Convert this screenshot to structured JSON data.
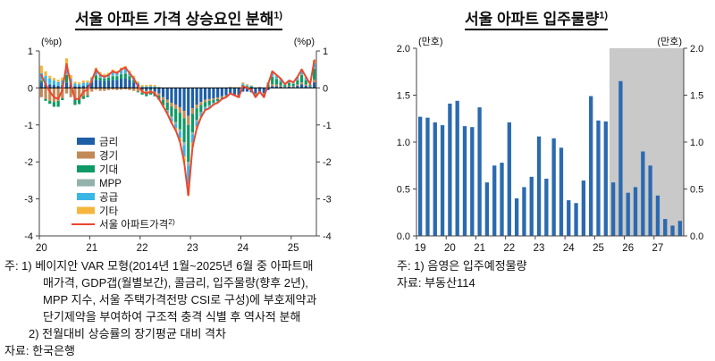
{
  "left_chart": {
    "title": "서울 아파트 가격 상승요인 분해",
    "title_sup": "1)"
  },
  "right_chart": {
    "title": "서울 아파트 입주물량",
    "title_sup": "1)"
  },
  "notes_left": {
    "lines": [
      "주: 1) 베이지안 VAR 모형(2014년 1월~2025년 6월 중 아파트매",
      "매가격, GDP갭(월별보간), 콜금리, 입주물량(향후 2년),",
      "MPP 지수, 서울 주택가격전망 CSI로 구성)에 부호제약과",
      "단기제약을 부여하여 구조적 충격 식별 후 역사적 분해",
      "2) 전월대비 상승률의 장기평균 대비 격차",
      "자료: 한국은행"
    ]
  },
  "notes_right": {
    "lines": [
      "주: 1) 음영은 입주예정물량",
      "자료: 부동산114"
    ]
  },
  "chart_data": [
    {
      "type": "bar",
      "stacked": true,
      "title": "서울 아파트 가격 상승요인 분해1)",
      "unit_left": "(%p)",
      "unit_right": "(%p)",
      "frequency": "monthly",
      "x_start": "2020-01",
      "x_end": "2025-06",
      "ylim": [
        -4,
        1
      ],
      "y_ticks": {
        "values": [
          1,
          0,
          -1,
          -2,
          -3,
          -4
        ],
        "labels": [
          "1",
          "0",
          "-1",
          "-2",
          "-3",
          "-4"
        ]
      },
      "x_ticks": [
        {
          "index": 0,
          "label": "20"
        },
        {
          "index": 12,
          "label": "21"
        },
        {
          "index": 24,
          "label": "22"
        },
        {
          "index": 36,
          "label": "23"
        },
        {
          "index": 48,
          "label": "24"
        },
        {
          "index": 60,
          "label": "25"
        }
      ],
      "legend_position": "inside-left",
      "series": [
        {
          "name": "금리",
          "color": "#1e5fa8",
          "values": [
            0.15,
            0.12,
            0.1,
            0.08,
            0.06,
            0.08,
            0.15,
            0.1,
            0.05,
            0.04,
            0.06,
            0.08,
            0.15,
            0.22,
            0.2,
            0.18,
            0.2,
            0.22,
            0.22,
            0.25,
            0.26,
            0.22,
            0.15,
            0.1,
            -0.05,
            -0.08,
            -0.06,
            -0.1,
            -0.15,
            -0.25,
            -0.32,
            -0.4,
            -0.45,
            -0.52,
            -0.62,
            -0.75,
            -0.55,
            -0.45,
            -0.38,
            -0.32,
            -0.3,
            -0.28,
            -0.26,
            -0.22,
            -0.2,
            -0.16,
            -0.18,
            -0.2,
            -0.1,
            -0.1,
            -0.12,
            -0.15,
            -0.12,
            -0.14,
            -0.06,
            0.05,
            0.05,
            0.04,
            0.02,
            0.04,
            0.03,
            0.06,
            0.1,
            0.06,
            0.03,
            0.15
          ]
        },
        {
          "name": "경기",
          "color": "#c28a57",
          "values": [
            -0.25,
            -0.3,
            -0.35,
            -0.38,
            -0.35,
            -0.28,
            -0.15,
            -0.25,
            -0.3,
            -0.28,
            -0.22,
            -0.2,
            -0.1,
            -0.05,
            -0.08,
            -0.08,
            -0.06,
            -0.05,
            -0.06,
            -0.05,
            -0.04,
            -0.06,
            -0.08,
            -0.1,
            -0.08,
            -0.08,
            -0.07,
            -0.06,
            -0.06,
            -0.07,
            -0.08,
            -0.1,
            -0.12,
            -0.15,
            -0.2,
            -0.25,
            -0.15,
            -0.1,
            -0.08,
            -0.06,
            -0.05,
            -0.04,
            -0.04,
            -0.03,
            -0.03,
            -0.02,
            -0.03,
            -0.04,
            0.02,
            0.01,
            0.01,
            -0.03,
            -0.01,
            -0.03,
            0.02,
            0.05,
            0.04,
            0.03,
            0.01,
            0.02,
            0.02,
            0.03,
            0.05,
            0.03,
            0.01,
            0.07
          ]
        },
        {
          "name": "기대",
          "color": "#0f9a65",
          "values": [
            0.05,
            -0.05,
            -0.08,
            -0.12,
            -0.15,
            -0.05,
            0.2,
            0.02,
            -0.15,
            -0.15,
            -0.08,
            -0.05,
            0.05,
            0.12,
            0.08,
            0.08,
            0.08,
            0.1,
            0.1,
            0.12,
            0.13,
            0.1,
            0.06,
            -0.02,
            -0.05,
            -0.06,
            -0.05,
            -0.06,
            -0.1,
            -0.15,
            -0.2,
            -0.28,
            -0.35,
            -0.45,
            -0.65,
            -1.0,
            -0.5,
            -0.32,
            -0.2,
            -0.13,
            -0.12,
            -0.08,
            -0.06,
            -0.03,
            -0.02,
            0.01,
            -0.01,
            -0.02,
            0.06,
            0.04,
            0.03,
            -0.05,
            0.0,
            -0.05,
            0.08,
            0.2,
            0.15,
            0.1,
            0.04,
            0.08,
            0.06,
            0.12,
            0.2,
            0.12,
            0.04,
            0.3
          ]
        },
        {
          "name": "MPP",
          "color": "#93b2ab",
          "values": [
            0.02,
            0.01,
            0.01,
            -0.02,
            -0.02,
            0.01,
            0.03,
            0.01,
            -0.02,
            -0.02,
            0.0,
            0.0,
            0.01,
            0.02,
            0.02,
            0.02,
            0.02,
            0.02,
            0.02,
            0.02,
            0.02,
            0.02,
            0.01,
            0.0,
            0.0,
            -0.01,
            -0.01,
            -0.01,
            -0.02,
            -0.02,
            -0.03,
            -0.04,
            -0.05,
            -0.06,
            -0.08,
            -0.1,
            -0.06,
            -0.04,
            -0.03,
            -0.02,
            -0.02,
            -0.01,
            -0.01,
            -0.01,
            -0.01,
            0.0,
            0.0,
            -0.01,
            0.01,
            0.01,
            0.0,
            -0.01,
            0.0,
            -0.01,
            0.01,
            0.02,
            0.02,
            0.01,
            0.0,
            0.01,
            0.01,
            0.01,
            0.02,
            0.01,
            0.0,
            0.03
          ]
        },
        {
          "name": "공급",
          "color": "#38b6e6",
          "values": [
            0.18,
            0.2,
            0.15,
            0.12,
            0.1,
            0.12,
            0.22,
            0.12,
            0.07,
            0.06,
            0.08,
            0.07,
            0.05,
            0.1,
            0.08,
            0.06,
            0.07,
            0.09,
            0.07,
            0.09,
            0.1,
            0.07,
            0.06,
            0.04,
            0.04,
            0.04,
            0.05,
            0.04,
            0.02,
            -0.01,
            -0.05,
            -0.09,
            -0.12,
            -0.18,
            -0.3,
            -0.5,
            -0.22,
            -0.13,
            -0.08,
            -0.05,
            -0.04,
            -0.03,
            -0.02,
            -0.01,
            0.01,
            0.01,
            0.01,
            0.01,
            0.03,
            0.02,
            0.02,
            -0.01,
            0.02,
            -0.02,
            0.03,
            0.08,
            0.06,
            0.05,
            0.02,
            0.03,
            0.02,
            0.05,
            0.08,
            0.05,
            0.01,
            0.12
          ]
        },
        {
          "name": "기타",
          "color": "#f6b53d",
          "values": [
            0.2,
            0.12,
            0.07,
            0.07,
            0.06,
            0.07,
            0.2,
            0.1,
            0.05,
            0.05,
            0.06,
            0.05,
            0.04,
            0.09,
            0.05,
            0.04,
            0.04,
            0.07,
            0.05,
            0.07,
            0.08,
            0.05,
            0.05,
            0.03,
            0.04,
            0.04,
            0.04,
            0.04,
            0.01,
            0.0,
            -0.02,
            -0.04,
            -0.06,
            -0.09,
            -0.15,
            -0.3,
            -0.12,
            -0.06,
            -0.03,
            -0.02,
            -0.02,
            -0.01,
            -0.01,
            0.0,
            0.0,
            0.01,
            0.01,
            0.01,
            0.03,
            0.02,
            0.01,
            0.0,
            0.01,
            0.0,
            0.02,
            0.05,
            0.03,
            0.02,
            0.01,
            0.02,
            0.01,
            0.03,
            0.05,
            0.03,
            0.01,
            0.08
          ]
        }
      ],
      "line": {
        "name": "서울 아파트가격",
        "sup": "2)",
        "color": "#ee4630",
        "values": [
          0.35,
          0.1,
          -0.1,
          -0.25,
          -0.3,
          -0.05,
          0.65,
          0.1,
          -0.3,
          -0.3,
          -0.1,
          -0.05,
          0.2,
          0.5,
          0.35,
          0.3,
          0.35,
          0.45,
          0.4,
          0.5,
          0.55,
          0.4,
          0.25,
          0.05,
          -0.1,
          -0.15,
          -0.1,
          -0.15,
          -0.3,
          -0.5,
          -0.7,
          -0.95,
          -1.15,
          -1.45,
          -2.0,
          -2.9,
          -1.6,
          -1.1,
          -0.8,
          -0.6,
          -0.55,
          -0.45,
          -0.4,
          -0.3,
          -0.25,
          -0.15,
          -0.2,
          -0.25,
          0.05,
          0.0,
          -0.05,
          -0.25,
          -0.1,
          -0.25,
          0.1,
          0.45,
          0.35,
          0.25,
          0.1,
          0.2,
          0.15,
          0.3,
          0.5,
          0.3,
          0.1,
          0.75
        ]
      }
    },
    {
      "type": "bar",
      "title": "서울 아파트 입주물량1)",
      "unit_left": "(만호)",
      "unit_right": "(만호)",
      "frequency": "quarterly",
      "x_start": "2019Q1",
      "x_end": "2027Q4",
      "ylim": [
        0,
        2
      ],
      "y_ticks": {
        "values": [
          0,
          0.5,
          1,
          1.5,
          2
        ],
        "labels": [
          "0.0",
          "0.5",
          "1.0",
          "1.5",
          "2.0"
        ]
      },
      "x_ticks": [
        {
          "index": 0,
          "label": "19"
        },
        {
          "index": 4,
          "label": "20"
        },
        {
          "index": 8,
          "label": "21"
        },
        {
          "index": 12,
          "label": "22"
        },
        {
          "index": 16,
          "label": "23"
        },
        {
          "index": 20,
          "label": "24"
        },
        {
          "index": 24,
          "label": "25"
        },
        {
          "index": 28,
          "label": "26"
        },
        {
          "index": 32,
          "label": "27"
        }
      ],
      "bar_color": "#2b6ab0",
      "shade_color": "#c9c9c9",
      "shade_from_index": 26,
      "shade_from": "2025Q3",
      "shade_meaning": "입주예정물량",
      "values": [
        1.27,
        1.26,
        1.21,
        1.18,
        1.41,
        1.44,
        1.17,
        1.16,
        1.37,
        0.57,
        0.75,
        0.78,
        1.21,
        0.4,
        0.52,
        0.63,
        1.06,
        0.61,
        1.04,
        0.94,
        0.38,
        0.35,
        0.59,
        1.49,
        1.23,
        1.22,
        0.57,
        1.65,
        0.46,
        0.52,
        0.9,
        0.75,
        0.43,
        0.18,
        0.11,
        0.16
      ]
    }
  ]
}
